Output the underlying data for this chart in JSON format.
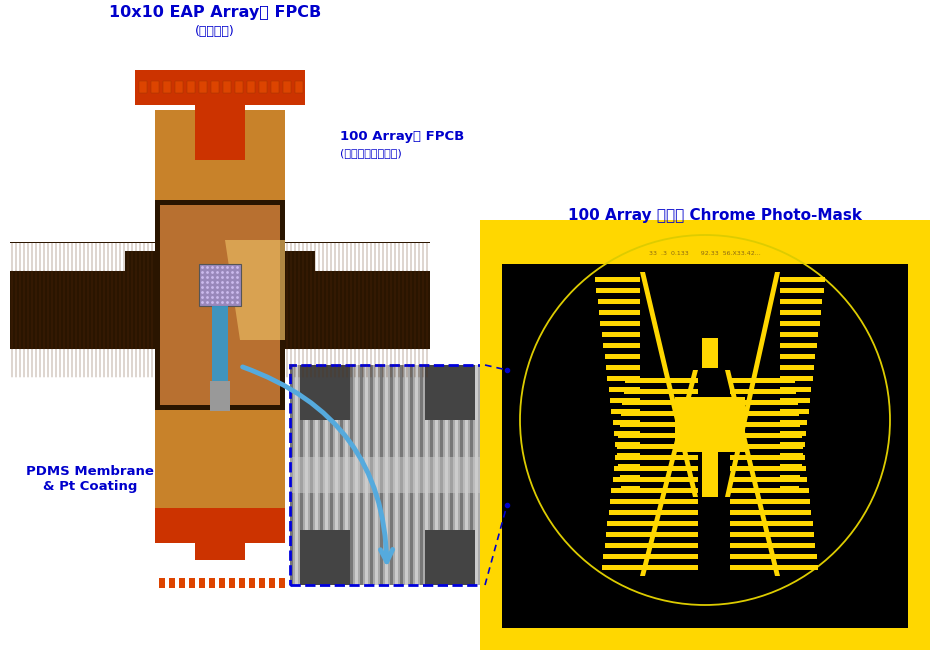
{
  "title1": "10x10 EAP Array용 FPCB",
  "title1_sub": "(성균관대)",
  "title2": "100 Array용 FPCB",
  "title2_sub": "(표준연과학연구원)",
  "title3": "100 Array 전기용 Chrome Photo-Mask",
  "label_pdms": "PDMS Membrane\n& Pt Coating",
  "bg_color": "#ffffff",
  "text_color": "#0000cc",
  "bottom_text": "33  .3  0.133     92.33  56.X33.42...",
  "orange_color": "#CC3300",
  "cyan_color": "#3399CC",
  "mask_yellow": "#FFD700",
  "arrow_color": "#55AADD"
}
